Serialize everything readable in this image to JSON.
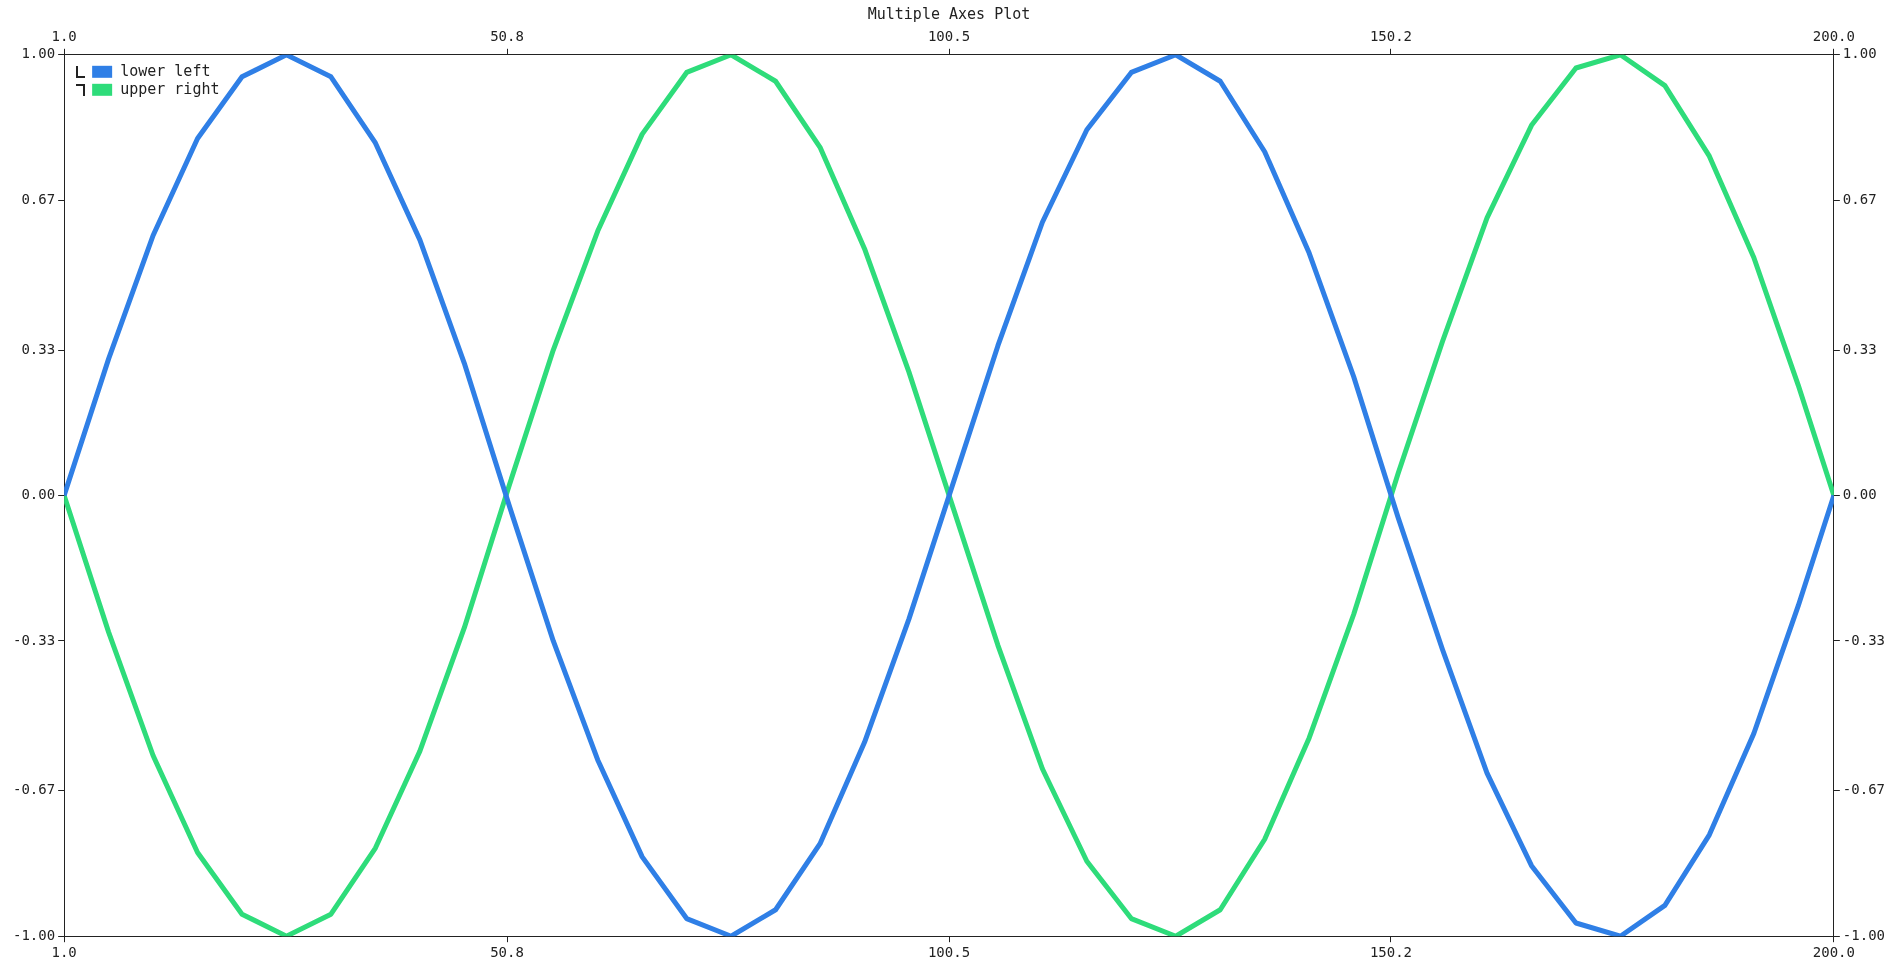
{
  "chart_data": {
    "type": "line",
    "title": "Multiple Axes Plot",
    "x": [
      1,
      6,
      11,
      16,
      21,
      26,
      31,
      36,
      41,
      46,
      51,
      56,
      61,
      66,
      71,
      76,
      81,
      86,
      91,
      96,
      101,
      106,
      111,
      116,
      121,
      126,
      131,
      136,
      141,
      146,
      151,
      156,
      161,
      166,
      171,
      176,
      181,
      186,
      191,
      196,
      200
    ],
    "series": [
      {
        "name": "lower left",
        "color": "#2f7fe6",
        "values": [
          0,
          0.31,
          0.59,
          0.81,
          0.95,
          1.0,
          0.95,
          0.8,
          0.58,
          0.3,
          -0.02,
          -0.33,
          -0.6,
          -0.82,
          -0.96,
          -1.0,
          -0.94,
          -0.79,
          -0.56,
          -0.28,
          0.03,
          0.34,
          0.62,
          0.83,
          0.96,
          1.0,
          0.94,
          0.78,
          0.55,
          0.27,
          -0.05,
          -0.35,
          -0.63,
          -0.84,
          -0.97,
          -1.0,
          -0.93,
          -0.77,
          -0.54,
          -0.25,
          0
        ]
      },
      {
        "name": "upper right",
        "color": "#2edc7a",
        "axis": "y2",
        "values": [
          0,
          -0.31,
          -0.59,
          -0.81,
          -0.95,
          -1.0,
          -0.95,
          -0.8,
          -0.58,
          -0.3,
          0.02,
          0.33,
          0.6,
          0.82,
          0.96,
          1.0,
          0.94,
          0.79,
          0.56,
          0.28,
          -0.03,
          -0.34,
          -0.62,
          -0.83,
          -0.96,
          -1.0,
          -0.94,
          -0.78,
          -0.55,
          -0.27,
          0.05,
          0.35,
          0.63,
          0.84,
          0.97,
          1.0,
          0.93,
          0.77,
          0.54,
          0.25,
          0
        ]
      }
    ],
    "xlim": [
      1,
      200
    ],
    "xticks": [
      {
        "value": 1,
        "label": "1.0"
      },
      {
        "value": 50.8,
        "label": "50.8"
      },
      {
        "value": 100.5,
        "label": "100.5"
      },
      {
        "value": 150.2,
        "label": "150.2"
      },
      {
        "value": 200,
        "label": "200.0"
      }
    ],
    "x2lim": [
      1,
      200
    ],
    "x2ticks": [
      {
        "value": 1,
        "label": "1.0"
      },
      {
        "value": 50.8,
        "label": "50.8"
      },
      {
        "value": 100.5,
        "label": "100.5"
      },
      {
        "value": 150.2,
        "label": "150.2"
      },
      {
        "value": 200,
        "label": "200.0"
      }
    ],
    "ylim": [
      -1,
      1
    ],
    "yticks": [
      {
        "value": -1,
        "label": "-1.00"
      },
      {
        "value": -0.67,
        "label": "-0.67"
      },
      {
        "value": -0.33,
        "label": "-0.33"
      },
      {
        "value": 0,
        "label": "0.00"
      },
      {
        "value": 0.33,
        "label": "0.33"
      },
      {
        "value": 0.67,
        "label": "0.67"
      },
      {
        "value": 1,
        "label": "1.00"
      }
    ],
    "y2lim": [
      -1,
      1
    ],
    "y2ticks": [
      {
        "value": -1,
        "label": "-1.00"
      },
      {
        "value": -0.67,
        "label": "-0.67"
      },
      {
        "value": -0.33,
        "label": "-0.33"
      },
      {
        "value": 0,
        "label": "0.00"
      },
      {
        "value": 0.33,
        "label": "0.33"
      },
      {
        "value": 0.67,
        "label": "0.67"
      },
      {
        "value": 1,
        "label": "1.00"
      }
    ],
    "legend": "top left",
    "grid": false,
    "line_style": "solid",
    "marker": "none"
  }
}
